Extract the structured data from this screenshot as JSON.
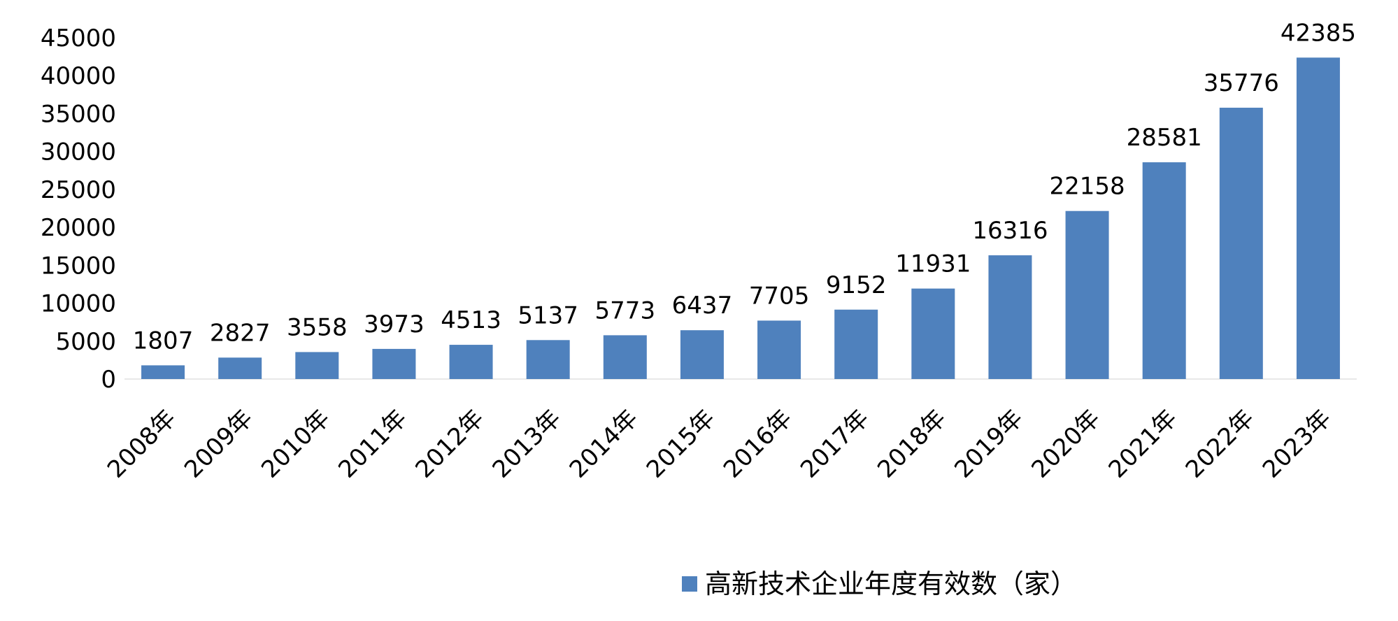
{
  "chart_data": {
    "type": "bar",
    "categories": [
      "2008年",
      "2009年",
      "2010年",
      "2011年",
      "2012年",
      "2013年",
      "2014年",
      "2015年",
      "2016年",
      "2017年",
      "2018年",
      "2019年",
      "2020年",
      "2021年",
      "2022年",
      "2023年"
    ],
    "series": [
      {
        "name": "高新技术企业年度有效数（家）",
        "values": [
          1807,
          2827,
          3558,
          3973,
          4513,
          5137,
          5773,
          6437,
          7705,
          9152,
          11931,
          16316,
          22158,
          28581,
          35776,
          42385
        ],
        "color": "#4F81BD"
      }
    ],
    "data_labels": [
      "1807",
      "2827",
      "3558",
      "3973",
      "4513",
      "5137",
      "5773",
      "6437",
      "7705",
      "9152",
      "11931",
      "16316",
      "22158",
      "28581",
      "35776",
      "42385"
    ],
    "yticks": [
      "0",
      "5000",
      "10000",
      "15000",
      "20000",
      "25000",
      "30000",
      "35000",
      "40000",
      "45000"
    ],
    "ylim": [
      0,
      45000
    ],
    "title": "",
    "xlabel": "",
    "ylabel": "",
    "grid": false,
    "legend_position": "bottom"
  }
}
